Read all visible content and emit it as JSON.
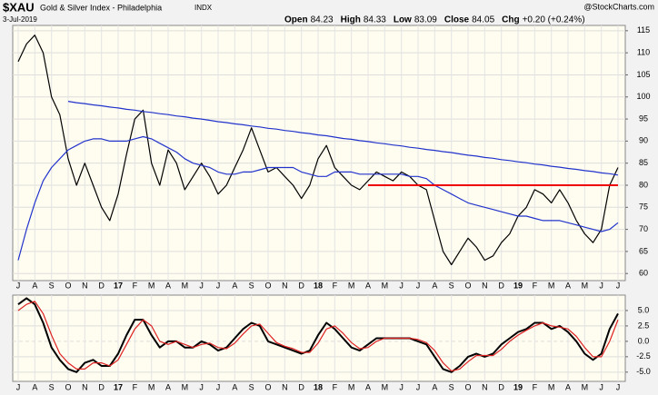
{
  "header": {
    "symbol": "$XAU",
    "name": "Gold & Silver Index - Philadelphia",
    "exchange": "INDX",
    "date": "3-Jul-2019",
    "source": "@StockCharts.com",
    "quote": [
      {
        "label": "Open",
        "value": 84.23
      },
      {
        "label": "High",
        "value": 84.33
      },
      {
        "label": "Low",
        "value": 83.09
      },
      {
        "label": "Close",
        "value": 84.05
      },
      {
        "label": "Chg",
        "value": "+0.20 (+0.24%)"
      }
    ]
  },
  "chart_data": [
    {
      "type": "line",
      "categories": [
        "J",
        null,
        "A",
        null,
        "S",
        null,
        "O",
        null,
        "N",
        null,
        "D",
        null,
        "17",
        null,
        "F",
        null,
        "M",
        null,
        "A",
        null,
        "M",
        null,
        "J",
        null,
        "J",
        null,
        "A",
        null,
        "S",
        null,
        "O",
        null,
        "N",
        null,
        "D",
        null,
        "18",
        null,
        "F",
        null,
        "M",
        null,
        "A",
        null,
        "M",
        null,
        "J",
        null,
        "J",
        null,
        "A",
        null,
        "S",
        null,
        "O",
        null,
        "N",
        null,
        "D",
        null,
        "19",
        null,
        "F",
        null,
        "M",
        null,
        "A",
        null,
        "M",
        null,
        "J",
        null,
        "J"
      ],
      "ylim": [
        58.4,
        116.2
      ],
      "yticks": [
        60,
        65,
        70,
        75,
        80,
        85,
        90,
        95,
        100,
        105,
        110,
        115
      ],
      "grid": true,
      "series": [
        {
          "name": "$XAU",
          "color": "#000000",
          "values": [
            108,
            112,
            114,
            110,
            100,
            96,
            86,
            80,
            85,
            80,
            75,
            72,
            78,
            87,
            95,
            97,
            85,
            80,
            88,
            85,
            79,
            82,
            85,
            82,
            78,
            80,
            84,
            88,
            93,
            88,
            83,
            84,
            82,
            80,
            77,
            80,
            86,
            89,
            84,
            82,
            80,
            79,
            81,
            83,
            82,
            81,
            83,
            82,
            80,
            79,
            72,
            65,
            62,
            65,
            68,
            66,
            63,
            64,
            67,
            69,
            73,
            75,
            79,
            78,
            76,
            79,
            76,
            72,
            69,
            67,
            70,
            80,
            84
          ]
        },
        {
          "name": "MA",
          "color": "#2233cc",
          "values": [
            63,
            70,
            76,
            81,
            84,
            86,
            88,
            89,
            90,
            90.5,
            90.5,
            90,
            90,
            90,
            90.5,
            91,
            90.5,
            89.5,
            88.5,
            87.5,
            86,
            85,
            84.5,
            84,
            83,
            82.5,
            82.5,
            83,
            83,
            83.5,
            84,
            84,
            84,
            84,
            83,
            82.5,
            82,
            82,
            83,
            83,
            83,
            82.5,
            82.5,
            82.5,
            82.5,
            82.5,
            82.5,
            82,
            82,
            81.5,
            80,
            79,
            78,
            77,
            76,
            75.5,
            75,
            74.5,
            74,
            73.5,
            73,
            73,
            72.5,
            72,
            72,
            72,
            71.5,
            71,
            70.5,
            70,
            69.5,
            70,
            71.5
          ]
        },
        {
          "name": "Trendline",
          "color": "#2233cc",
          "values": [
            null,
            null,
            null,
            null,
            null,
            null,
            99.0,
            98.7,
            98.5,
            98.2,
            98.0,
            97.7,
            97.5,
            97.2,
            97.0,
            96.7,
            96.5,
            96.2,
            96.0,
            95.7,
            95.5,
            95.2,
            95.0,
            94.7,
            94.4,
            94.2,
            93.9,
            93.7,
            93.4,
            93.2,
            92.9,
            92.7,
            92.4,
            92.2,
            91.9,
            91.7,
            91.4,
            91.2,
            90.9,
            90.6,
            90.4,
            90.1,
            89.9,
            89.6,
            89.4,
            89.1,
            88.9,
            88.6,
            88.4,
            88.1,
            87.9,
            87.6,
            87.4,
            87.1,
            86.8,
            86.6,
            86.3,
            86.1,
            85.8,
            85.6,
            85.3,
            85.1,
            84.8,
            84.6,
            84.3,
            84.1,
            83.8,
            83.6,
            83.3,
            83.1,
            82.8,
            82.6,
            82.3
          ]
        },
        {
          "name": "Support",
          "color": "#ee0000",
          "values": [
            null,
            null,
            null,
            null,
            null,
            null,
            null,
            null,
            null,
            null,
            null,
            null,
            null,
            null,
            null,
            null,
            null,
            null,
            null,
            null,
            null,
            null,
            null,
            null,
            null,
            null,
            null,
            null,
            null,
            null,
            null,
            null,
            null,
            null,
            null,
            null,
            null,
            null,
            null,
            null,
            null,
            null,
            80,
            80,
            80,
            80,
            80,
            80,
            80,
            80,
            80,
            80,
            80,
            80,
            80,
            80,
            80,
            80,
            80,
            80,
            80,
            80,
            80,
            80,
            80,
            80,
            80,
            80,
            80,
            80,
            80,
            80,
            80
          ]
        }
      ]
    },
    {
      "type": "line",
      "categories": [
        "J",
        null,
        "A",
        null,
        "S",
        null,
        "O",
        null,
        "N",
        null,
        "D",
        null,
        "17",
        null,
        "F",
        null,
        "M",
        null,
        "A",
        null,
        "M",
        null,
        "J",
        null,
        "J",
        null,
        "A",
        null,
        "S",
        null,
        "O",
        null,
        "N",
        null,
        "D",
        null,
        "18",
        null,
        "F",
        null,
        "M",
        null,
        "A",
        null,
        "M",
        null,
        "J",
        null,
        "J",
        null,
        "A",
        null,
        "S",
        null,
        "O",
        null,
        "N",
        null,
        "D",
        null,
        "19",
        null,
        "F",
        null,
        "M",
        null,
        "A",
        null,
        "M",
        null,
        "J",
        null,
        "J"
      ],
      "ylim": [
        -6.5,
        7.5
      ],
      "yticks": [
        {
          "value": -5,
          "label": "-5.0"
        },
        -2.5,
        {
          "value": 0,
          "label": "0.0"
        },
        2.5,
        {
          "value": 5,
          "label": "5.0"
        }
      ],
      "grid": true,
      "series": [
        {
          "name": "Oscillator",
          "color": "#000000",
          "values": [
            6,
            7,
            6,
            3,
            -1,
            -3,
            -4.5,
            -5,
            -3.5,
            -3,
            -4,
            -4,
            -2,
            1,
            3.5,
            3.5,
            1,
            -1,
            0,
            0,
            -1,
            -1,
            0,
            -0.5,
            -1.5,
            -1,
            0.5,
            2,
            3,
            2.5,
            0,
            -0.5,
            -1,
            -1.5,
            -2,
            -1.5,
            1,
            3,
            2,
            0.5,
            -1,
            -1.5,
            -0.5,
            0.5,
            0.5,
            0.5,
            0.5,
            0.5,
            0,
            -0.5,
            -2.5,
            -4.5,
            -5,
            -4,
            -2.5,
            -2,
            -2.5,
            -2,
            -0.5,
            0.5,
            1.5,
            2,
            3,
            3,
            2,
            2.5,
            1.5,
            0,
            -2,
            -3,
            -2,
            2,
            4.5
          ]
        },
        {
          "name": "Signal",
          "color": "#dd2222",
          "values": [
            5,
            6,
            6.5,
            4.5,
            1,
            -2,
            -3.5,
            -4.5,
            -4.5,
            -3.5,
            -3.5,
            -4,
            -3,
            -0.5,
            2,
            3.5,
            2.5,
            0,
            -0.5,
            0,
            -0.5,
            -1,
            -0.5,
            -0.3,
            -1,
            -1.2,
            -0.3,
            1.2,
            2.5,
            2.8,
            1.3,
            -0.2,
            -0.8,
            -1.2,
            -1.8,
            -1.8,
            -0.3,
            2,
            2.5,
            1.3,
            -0.2,
            -1.2,
            -1,
            0,
            0.5,
            0.5,
            0.5,
            0.5,
            0.3,
            -0.2,
            -1.5,
            -3.5,
            -4.8,
            -4.5,
            -3.3,
            -2.3,
            -2.3,
            -2.3,
            -1.3,
            0,
            1,
            1.8,
            2.5,
            3,
            2.5,
            2.3,
            2,
            0.8,
            -1,
            -2.5,
            -2.5,
            0,
            3.5
          ]
        }
      ]
    }
  ]
}
